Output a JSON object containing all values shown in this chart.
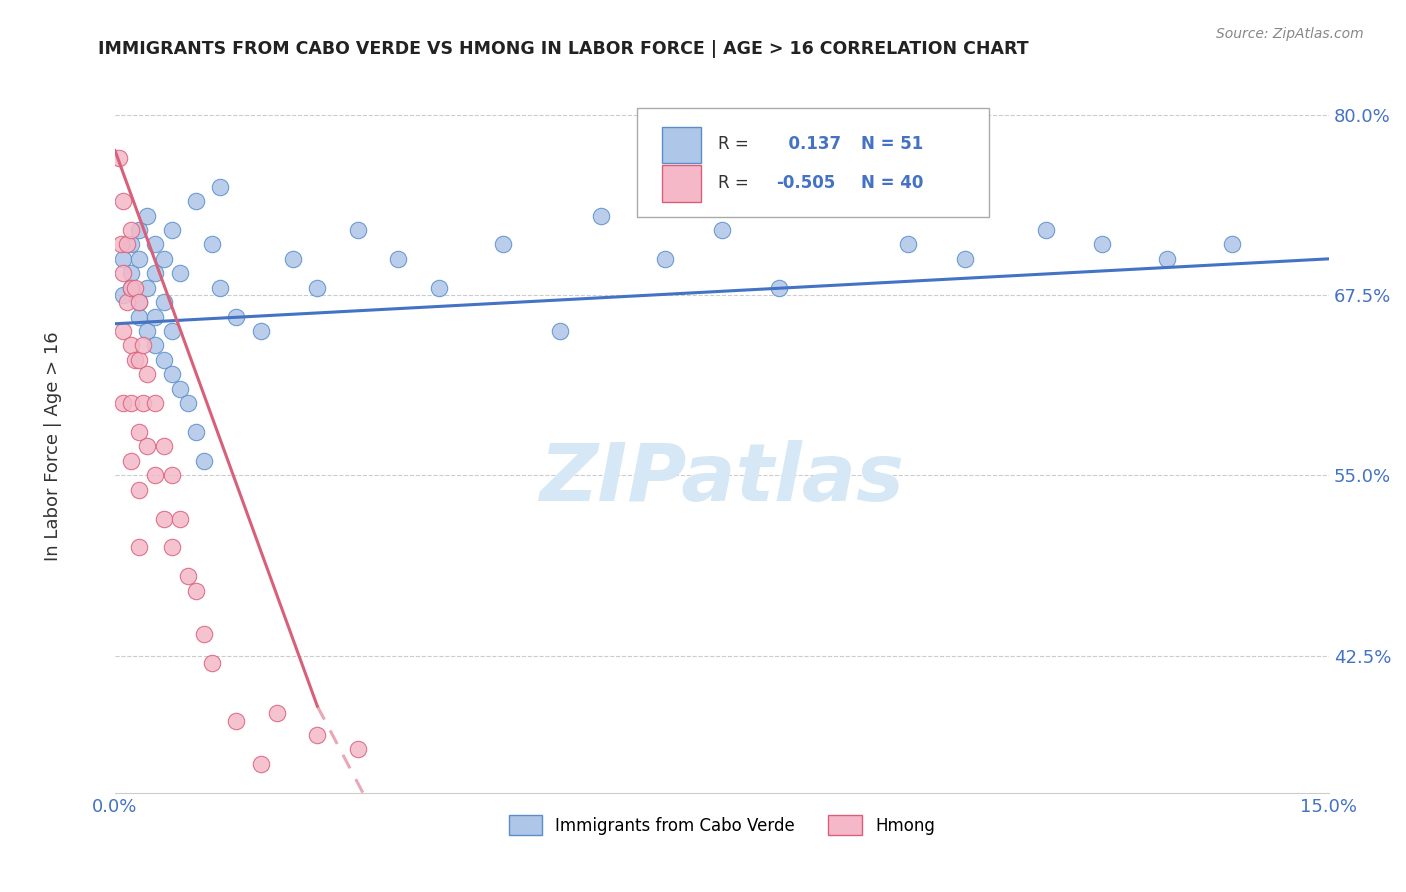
{
  "title": "IMMIGRANTS FROM CABO VERDE VS HMONG IN LABOR FORCE | AGE > 16 CORRELATION CHART",
  "source_text": "Source: ZipAtlas.com",
  "ylabel": "In Labor Force | Age > 16",
  "xlim": [
    0.0,
    0.15
  ],
  "ylim": [
    0.33,
    0.835
  ],
  "cabo_verde_R": 0.137,
  "cabo_verde_N": 51,
  "hmong_R": -0.505,
  "hmong_N": 40,
  "cabo_verde_color": "#aec6e8",
  "hmong_color": "#f4b8c8",
  "cabo_verde_edge_color": "#5b8ec9",
  "hmong_edge_color": "#d9607a",
  "cabo_verde_line_color": "#4472c4",
  "hmong_line_color": "#d9607a",
  "legend_R_color": "#4472c4",
  "watermark_color": "#d6e8f5",
  "cabo_verde_scatter_x": [
    0.001,
    0.001,
    0.002,
    0.002,
    0.002,
    0.003,
    0.003,
    0.003,
    0.003,
    0.004,
    0.004,
    0.004,
    0.005,
    0.005,
    0.005,
    0.005,
    0.006,
    0.006,
    0.006,
    0.007,
    0.007,
    0.007,
    0.008,
    0.008,
    0.009,
    0.01,
    0.01,
    0.011,
    0.012,
    0.013,
    0.013,
    0.015,
    0.018,
    0.022,
    0.025,
    0.03,
    0.035,
    0.04,
    0.048,
    0.055,
    0.06,
    0.068,
    0.075,
    0.082,
    0.09,
    0.098,
    0.105,
    0.115,
    0.122,
    0.13,
    0.138
  ],
  "cabo_verde_scatter_y": [
    0.675,
    0.7,
    0.68,
    0.71,
    0.69,
    0.66,
    0.67,
    0.72,
    0.7,
    0.65,
    0.68,
    0.73,
    0.64,
    0.66,
    0.69,
    0.71,
    0.63,
    0.67,
    0.7,
    0.62,
    0.65,
    0.72,
    0.61,
    0.69,
    0.6,
    0.58,
    0.74,
    0.56,
    0.71,
    0.68,
    0.75,
    0.66,
    0.65,
    0.7,
    0.68,
    0.72,
    0.7,
    0.68,
    0.71,
    0.65,
    0.73,
    0.7,
    0.72,
    0.68,
    0.74,
    0.71,
    0.7,
    0.72,
    0.71,
    0.7,
    0.71
  ],
  "hmong_scatter_x": [
    0.0005,
    0.0008,
    0.001,
    0.001,
    0.001,
    0.001,
    0.0015,
    0.0015,
    0.002,
    0.002,
    0.002,
    0.002,
    0.002,
    0.0025,
    0.0025,
    0.003,
    0.003,
    0.003,
    0.003,
    0.003,
    0.0035,
    0.0035,
    0.004,
    0.004,
    0.005,
    0.005,
    0.006,
    0.006,
    0.007,
    0.007,
    0.008,
    0.009,
    0.01,
    0.011,
    0.012,
    0.015,
    0.018,
    0.02,
    0.025,
    0.03
  ],
  "hmong_scatter_y": [
    0.77,
    0.71,
    0.74,
    0.69,
    0.65,
    0.6,
    0.71,
    0.67,
    0.72,
    0.68,
    0.64,
    0.6,
    0.56,
    0.68,
    0.63,
    0.67,
    0.63,
    0.58,
    0.54,
    0.5,
    0.64,
    0.6,
    0.62,
    0.57,
    0.6,
    0.55,
    0.57,
    0.52,
    0.55,
    0.5,
    0.52,
    0.48,
    0.47,
    0.44,
    0.42,
    0.38,
    0.35,
    0.385,
    0.37,
    0.36
  ],
  "cabo_verde_trend": [
    0.0,
    0.15,
    0.655,
    0.7
  ],
  "hmong_trend_solid": [
    0.0,
    0.025,
    0.775,
    0.39
  ],
  "hmong_trend_dash": [
    0.025,
    0.055,
    0.39,
    0.07
  ],
  "grid_color": "#cccccc",
  "background_color": "#ffffff"
}
